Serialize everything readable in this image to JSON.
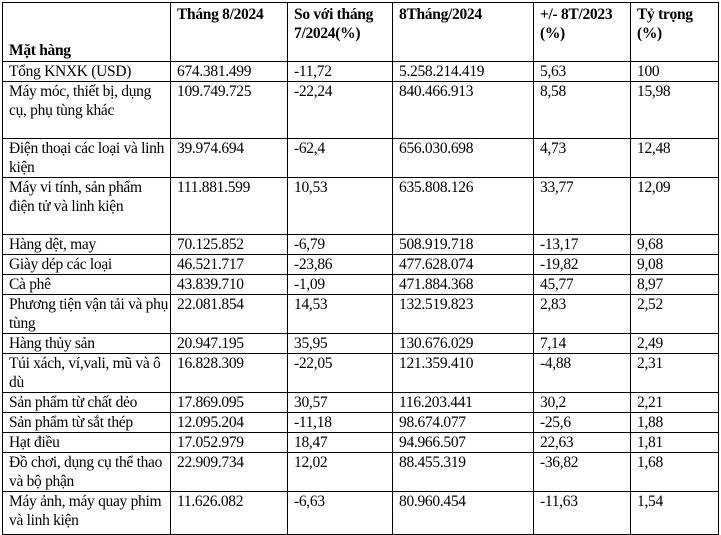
{
  "table": {
    "headers": [
      "Mặt hàng",
      "Tháng 8/2024",
      "So với tháng 7/2024(%)",
      "8Tháng/2024",
      "+/- 8T/2023 (%)",
      "Tỷ trọng (%)"
    ],
    "rows": [
      [
        "Tổng KNXK (USD)",
        "674.381.499",
        "-11,72",
        "5.258.214.419",
        "5,63",
        "100"
      ],
      [
        "Máy móc, thiết bị, dụng cụ, phụ tùng khác",
        "109.749.725",
        "-22,24",
        "840.466.913",
        "8,58",
        "15,98"
      ],
      [
        "Điện thoại các loại và linh kiện",
        "39.974.694",
        "-62,4",
        "656.030.698",
        "4,73",
        "12,48"
      ],
      [
        "Máy vi tính, sản phẩm điện tử và linh kiện",
        "111.881.599",
        "10,53",
        "635.808.126",
        "33,77",
        "12,09"
      ],
      [
        "Hàng dệt, may",
        "70.125.852",
        "-6,79",
        "508.919.718",
        "-13,17",
        "9,68"
      ],
      [
        "Giày dép các loại",
        "46.521.717",
        "-23,86",
        "477.628.074",
        "-19,82",
        "9,08"
      ],
      [
        "Cà phê",
        "43.839.710",
        "-1,09",
        "471.884.368",
        "45,77",
        "8,97"
      ],
      [
        "Phương tiện vận tải và phụ tùng",
        "22.081.854",
        "14,53",
        "132.519.823",
        "2,83",
        "2,52"
      ],
      [
        "Hàng thủy sản",
        "20.947.195",
        "35,95",
        "130.676.029",
        "7,14",
        "2,49"
      ],
      [
        "Túi xách, ví,vali, mũ và ô dù",
        "16.828.309",
        "-22,05",
        "121.359.410",
        "-4,88",
        "2,31"
      ],
      [
        "Sản phẩm từ chất dẻo",
        "17.869.095",
        "30,57",
        "116.203.441",
        "30,2",
        "2,21"
      ],
      [
        "Sản phẩm từ sắt thép",
        "12.095.204",
        "-11,18",
        "98.674.077",
        "-25,6",
        "1,88"
      ],
      [
        "Hạt điều",
        "17.052.979",
        "18,47",
        "94.966.507",
        "22,63",
        "1,81"
      ],
      [
        "Đồ chơi, dụng cụ thể thao và bộ phận",
        "22.909.734",
        "12,02",
        "88.455.319",
        "-36,82",
        "1,68"
      ],
      [
        "Máy ảnh, máy quay phim và linh kiện",
        "11.626.082",
        "-6,63",
        "80.960.454",
        "-11,63",
        "1,54"
      ]
    ]
  }
}
